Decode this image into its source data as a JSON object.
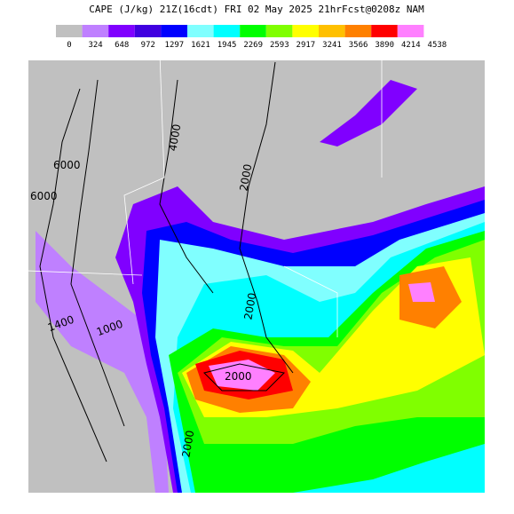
{
  "header": {
    "title": "CAPE (J/kg) 21Z(16cdt) FRI 02 May 2025 21hrFcst@0208z NAM"
  },
  "legend": {
    "colors": [
      "#c0c0c0",
      "#bf80ff",
      "#8000ff",
      "#4000e0",
      "#0000ff",
      "#80ffff",
      "#00ffff",
      "#00ff00",
      "#80ff00",
      "#ffff00",
      "#ffc000",
      "#ff8000",
      "#ff0000",
      "#ff80ff"
    ],
    "labels": [
      0,
      324,
      648,
      972,
      1297,
      1621,
      1945,
      2269,
      2593,
      2917,
      3241,
      3566,
      3890,
      4214,
      4538
    ]
  },
  "map": {
    "contour_labels": [
      "6000",
      "6000",
      "4000",
      "2000",
      "2000",
      "2000",
      "1400",
      "1000",
      "2000"
    ]
  }
}
